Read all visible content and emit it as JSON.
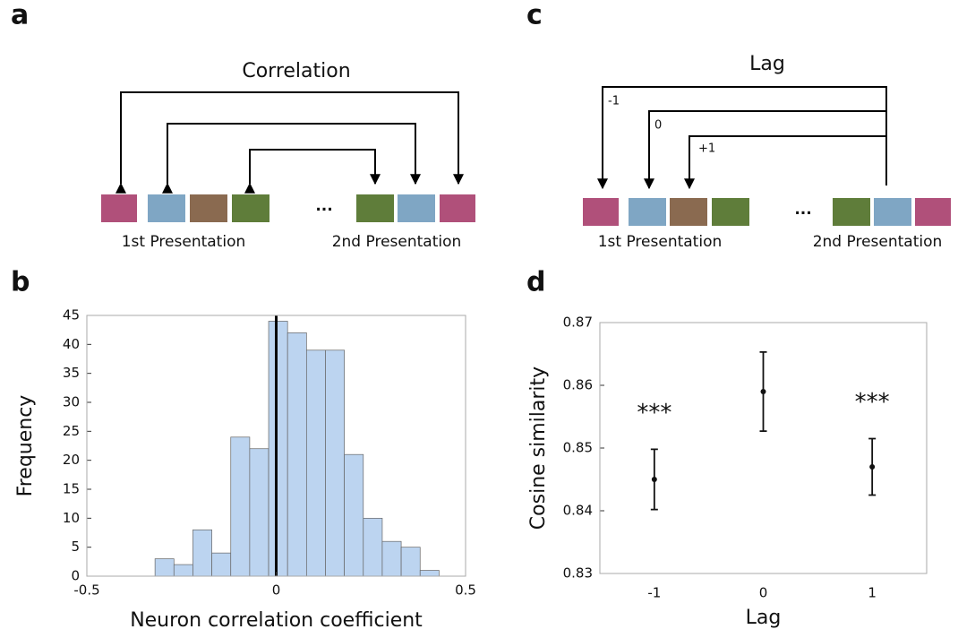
{
  "panels": [
    "a",
    "b",
    "c",
    "d"
  ],
  "diagram_a": {
    "title": "Correlation",
    "ellipsis": "...",
    "labels": [
      "1st Presentation",
      "2nd Presentation"
    ]
  },
  "diagram_c": {
    "title": "Lag",
    "lags": [
      "-1",
      "0",
      "+1"
    ],
    "ellipsis": "...",
    "labels": [
      "1st Presentation",
      "2nd Presentation"
    ]
  },
  "chart_data": [
    {
      "type": "histogram",
      "x_label": "Neuron correlation coefficient",
      "y_label": "Frequency",
      "bins": [
        -0.32,
        -0.27,
        -0.22,
        -0.17,
        -0.12,
        -0.07,
        -0.02,
        0.03,
        0.08,
        0.13,
        0.18,
        0.23,
        0.28,
        0.33,
        0.38,
        0.43
      ],
      "counts": [
        3,
        2,
        8,
        4,
        24,
        22,
        44,
        42,
        39,
        39,
        21,
        10,
        6,
        5,
        1
      ],
      "color": "#bcd4f0",
      "edge_color": "#666666",
      "vline": 0,
      "vline_color": "#000000",
      "xlim": [
        -0.5,
        0.5
      ],
      "xticks": [
        -0.5,
        0,
        0.5
      ],
      "ylim": [
        0,
        45
      ],
      "yticks": [
        0,
        5,
        10,
        15,
        20,
        25,
        30,
        35,
        40,
        45
      ]
    },
    {
      "type": "errorbar",
      "x_label": "Lag",
      "y_label": "Cosine similarity",
      "categories": [
        "-1",
        "0",
        "1"
      ],
      "values": [
        0.845,
        0.859,
        0.847
      ],
      "errors": [
        0.0048,
        0.0063,
        0.0045
      ],
      "annotations": [
        "***",
        null,
        "***"
      ],
      "color": "#111111",
      "ylim": [
        0.83,
        0.87
      ],
      "yticks": [
        0.83,
        0.84,
        0.85,
        0.86,
        0.87
      ]
    }
  ]
}
